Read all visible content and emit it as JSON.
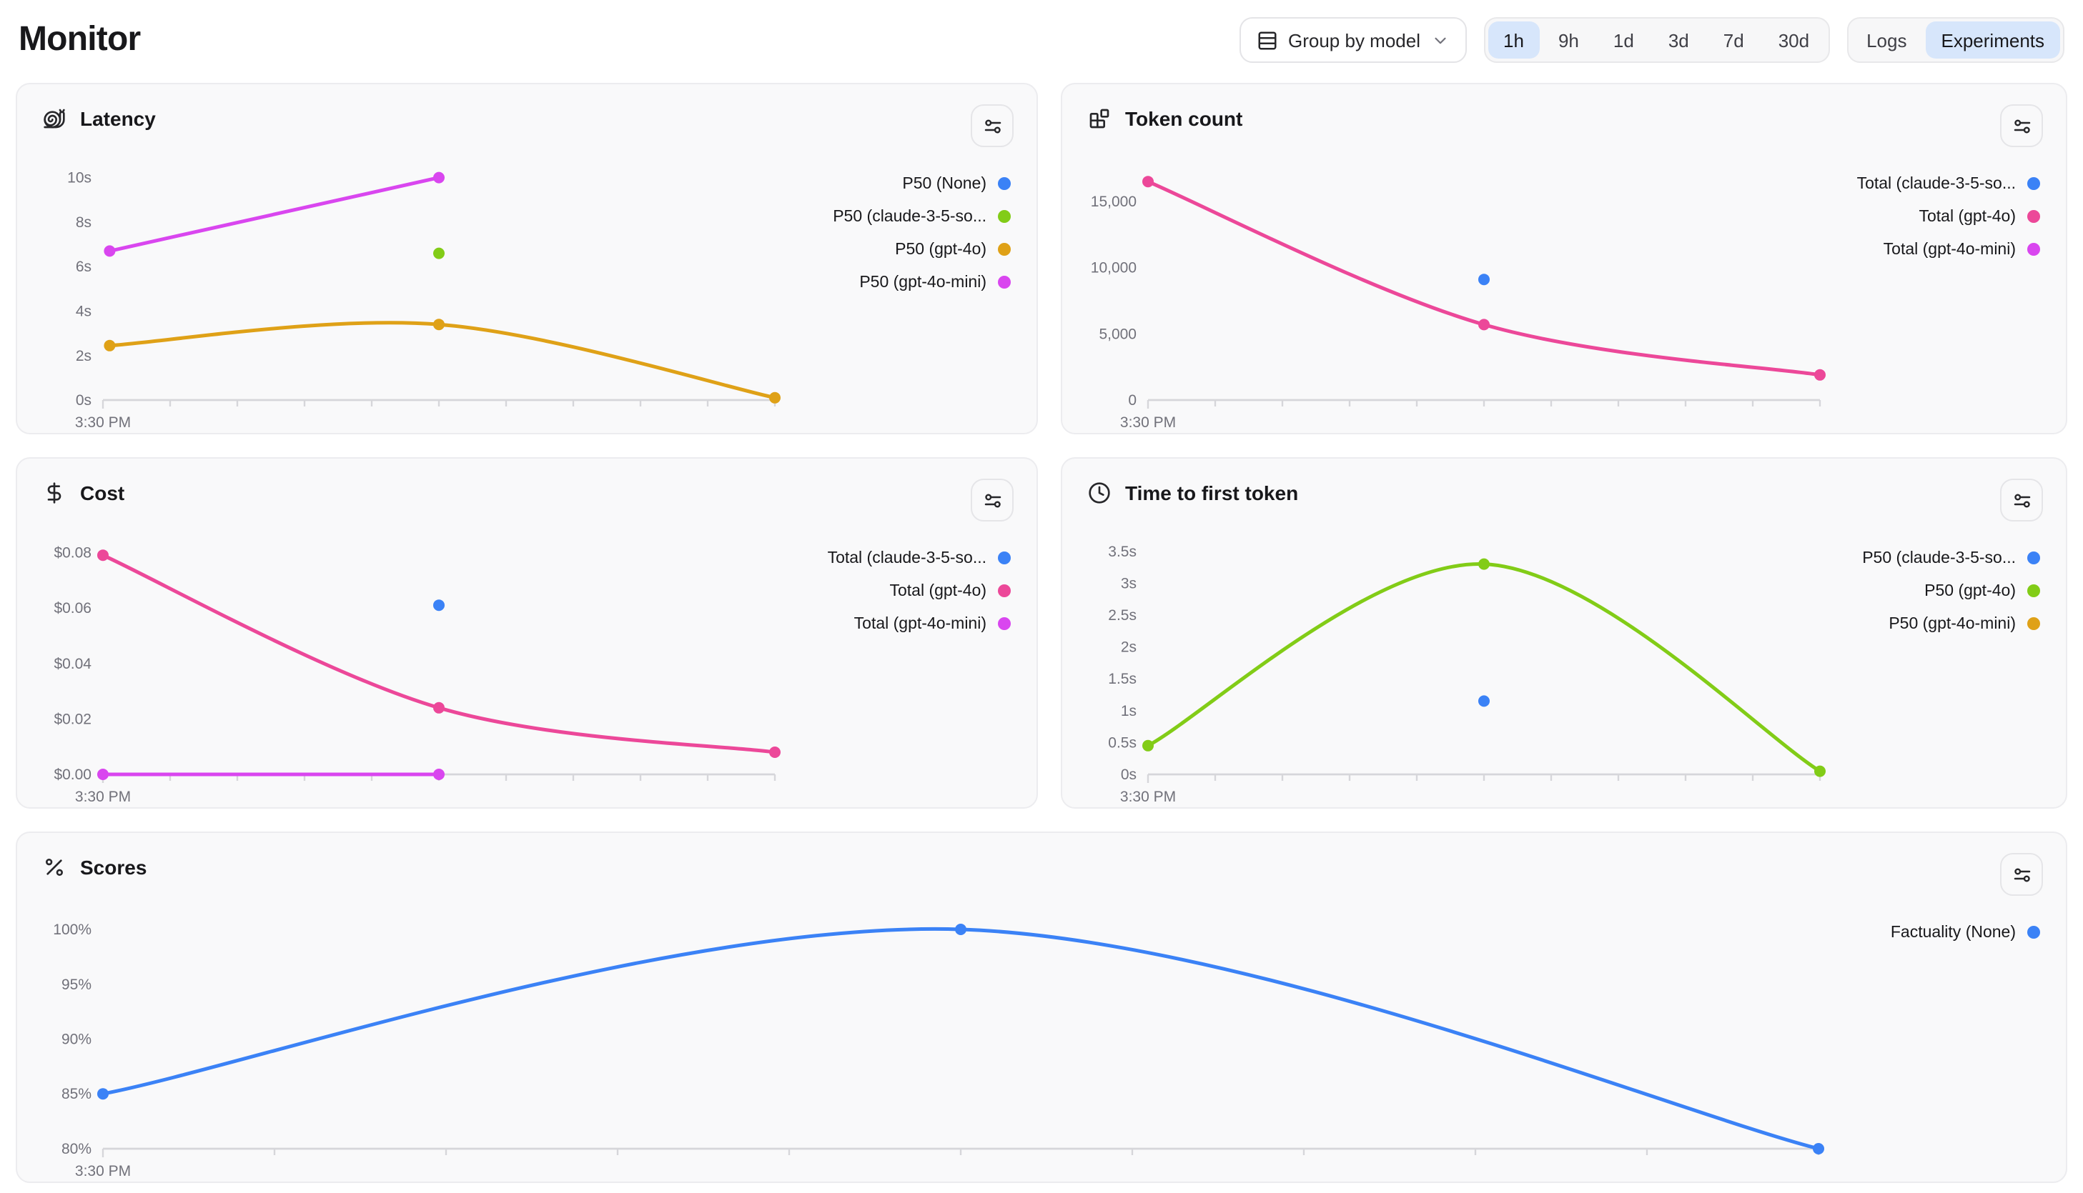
{
  "header": {
    "title": "Monitor",
    "group_by_label": "Group by model",
    "time_ranges": [
      "1h",
      "9h",
      "1d",
      "3d",
      "7d",
      "30d"
    ],
    "time_range_selected": "1h",
    "view_options": [
      "Logs",
      "Experiments"
    ],
    "view_selected": "Experiments"
  },
  "colors": {
    "blue": "#3b82f6",
    "green": "#82cc17",
    "yellow": "#dfa117",
    "magenta": "#d946ef",
    "pink": "#ec4899"
  },
  "chart_data": [
    {
      "id": "latency",
      "type": "line",
      "title": "Latency",
      "icon": "snail-icon",
      "x_axis_label": "3:30 PM",
      "ylim": [
        0,
        10.6
      ],
      "grid": false,
      "legend_position": "right",
      "y_ticks": [
        {
          "value": 10,
          "label": "10s"
        },
        {
          "value": 8,
          "label": "8s"
        },
        {
          "value": 6,
          "label": "6s"
        },
        {
          "value": 4,
          "label": "4s"
        },
        {
          "value": 2,
          "label": "2s"
        },
        {
          "value": 0,
          "label": "0s"
        }
      ],
      "legend": [
        {
          "label": "P50 (None)",
          "color_key": "blue"
        },
        {
          "label": "P50 (claude-3-5-so...",
          "color_key": "green"
        },
        {
          "label": "P50 (gpt-4o)",
          "color_key": "yellow"
        },
        {
          "label": "P50 (gpt-4o-mini)",
          "color_key": "magenta"
        }
      ],
      "series": [
        {
          "name": "P50 (gpt-4o-mini)",
          "color_key": "magenta",
          "x": [
            0.01,
            0.5
          ],
          "values": [
            6.7,
            10.0
          ]
        },
        {
          "name": "P50 (claude-3-5-so...",
          "color_key": "green",
          "x": [
            0.5
          ],
          "values": [
            6.6
          ]
        },
        {
          "name": "P50 (gpt-4o)",
          "color_key": "yellow",
          "x": [
            0.01,
            0.5,
            1.0
          ],
          "values": [
            2.45,
            3.4,
            0.1
          ]
        }
      ],
      "wide": false
    },
    {
      "id": "token-count",
      "type": "line",
      "title": "Token count",
      "icon": "blocks-icon",
      "x_axis_label": "3:30 PM",
      "ylim": [
        0,
        17800
      ],
      "grid": false,
      "legend_position": "right",
      "y_ticks": [
        {
          "value": 15000,
          "label": "15,000"
        },
        {
          "value": 10000,
          "label": "10,000"
        },
        {
          "value": 5000,
          "label": "5,000"
        },
        {
          "value": 0,
          "label": "0"
        }
      ],
      "legend": [
        {
          "label": "Total (claude-3-5-so...",
          "color_key": "blue"
        },
        {
          "label": "Total (gpt-4o)",
          "color_key": "pink"
        },
        {
          "label": "Total (gpt-4o-mini)",
          "color_key": "magenta"
        }
      ],
      "series": [
        {
          "name": "Total (gpt-4o)",
          "color_key": "pink",
          "x": [
            0.0,
            0.5,
            1.0
          ],
          "values": [
            16500,
            5700,
            1900
          ]
        },
        {
          "name": "Total (claude-3-5-so...",
          "color_key": "blue",
          "x": [
            0.5
          ],
          "values": [
            9100
          ]
        }
      ],
      "wide": false
    },
    {
      "id": "cost",
      "type": "line",
      "title": "Cost",
      "icon": "dollar-icon",
      "x_axis_label": "3:30 PM",
      "ylim": [
        0,
        0.085
      ],
      "grid": false,
      "legend_position": "right",
      "y_ticks": [
        {
          "value": 0.08,
          "label": "$0.08"
        },
        {
          "value": 0.06,
          "label": "$0.06"
        },
        {
          "value": 0.04,
          "label": "$0.04"
        },
        {
          "value": 0.02,
          "label": "$0.02"
        },
        {
          "value": 0.0,
          "label": "$0.00"
        }
      ],
      "legend": [
        {
          "label": "Total (claude-3-5-so...",
          "color_key": "blue"
        },
        {
          "label": "Total (gpt-4o)",
          "color_key": "pink"
        },
        {
          "label": "Total (gpt-4o-mini)",
          "color_key": "magenta"
        }
      ],
      "series": [
        {
          "name": "Total (gpt-4o)",
          "color_key": "pink",
          "x": [
            0.0,
            0.5,
            1.0
          ],
          "values": [
            0.079,
            0.024,
            0.008
          ]
        },
        {
          "name": "Total (gpt-4o-mini)",
          "color_key": "magenta",
          "x": [
            0.0,
            0.5
          ],
          "values": [
            0.0,
            0.0
          ]
        },
        {
          "name": "Total (claude-3-5-so...",
          "color_key": "blue",
          "x": [
            0.5
          ],
          "values": [
            0.061
          ]
        }
      ],
      "wide": false
    },
    {
      "id": "time-to-first-token",
      "type": "line",
      "title": "Time to first token",
      "icon": "clock-icon",
      "x_axis_label": "3:30 PM",
      "ylim": [
        0,
        3.7
      ],
      "grid": false,
      "legend_position": "right",
      "y_ticks": [
        {
          "value": 3.5,
          "label": "3.5s"
        },
        {
          "value": 3,
          "label": "3s"
        },
        {
          "value": 2.5,
          "label": "2.5s"
        },
        {
          "value": 2,
          "label": "2s"
        },
        {
          "value": 1.5,
          "label": "1.5s"
        },
        {
          "value": 1,
          "label": "1s"
        },
        {
          "value": 0.5,
          "label": "0.5s"
        },
        {
          "value": 0,
          "label": "0s"
        }
      ],
      "legend": [
        {
          "label": "P50 (claude-3-5-so...",
          "color_key": "blue"
        },
        {
          "label": "P50 (gpt-4o)",
          "color_key": "green"
        },
        {
          "label": "P50 (gpt-4o-mini)",
          "color_key": "yellow"
        }
      ],
      "series": [
        {
          "name": "P50 (gpt-4o)",
          "color_key": "green",
          "x": [
            0.0,
            0.5,
            1.0
          ],
          "values": [
            0.45,
            3.3,
            0.05
          ]
        },
        {
          "name": "P50 (claude-3-5-so...",
          "color_key": "blue",
          "x": [
            0.5
          ],
          "values": [
            1.15
          ]
        }
      ],
      "wide": false
    },
    {
      "id": "scores",
      "type": "line",
      "title": "Scores",
      "icon": "percent-icon",
      "x_axis_label": "3:30 PM",
      "ylim": [
        80,
        101.5
      ],
      "grid": false,
      "legend_position": "right",
      "y_ticks": [
        {
          "value": 100,
          "label": "100%"
        },
        {
          "value": 95,
          "label": "95%"
        },
        {
          "value": 90,
          "label": "90%"
        },
        {
          "value": 85,
          "label": "85%"
        },
        {
          "value": 80,
          "label": "80%"
        }
      ],
      "legend": [
        {
          "label": "Factuality (None)",
          "color_key": "blue"
        }
      ],
      "series": [
        {
          "name": "Factuality (None)",
          "color_key": "blue",
          "x": [
            0.0,
            0.5,
            1.0
          ],
          "values": [
            85,
            100,
            80
          ]
        }
      ],
      "wide": true
    }
  ]
}
